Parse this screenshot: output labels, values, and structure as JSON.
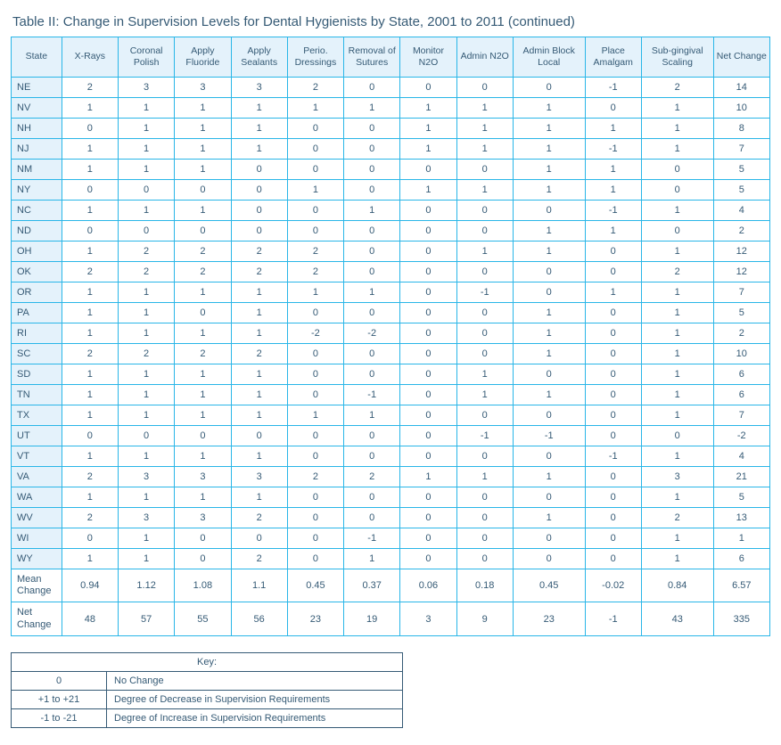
{
  "title": "Table II: Change in Supervision Levels for Dental Hygienists by State, 2001 to 2011 (continued)",
  "columns": [
    "State",
    "X-Rays",
    "Coronal Polish",
    "Apply Fluoride",
    "Apply Sealants",
    "Perio. Dressings",
    "Removal of Sutures",
    "Monitor N2O",
    "Admin N2O",
    "Admin Block Local",
    "Place Amalgam",
    "Sub-gingival Scaling",
    "Net Change"
  ],
  "rows": [
    {
      "state": "NE",
      "v": [
        2,
        3,
        3,
        3,
        2,
        0,
        0,
        0,
        0,
        -1,
        2,
        14
      ]
    },
    {
      "state": "NV",
      "v": [
        1,
        1,
        1,
        1,
        1,
        1,
        1,
        1,
        1,
        0,
        1,
        10
      ]
    },
    {
      "state": "NH",
      "v": [
        0,
        1,
        1,
        1,
        0,
        0,
        1,
        1,
        1,
        1,
        1,
        8
      ]
    },
    {
      "state": "NJ",
      "v": [
        1,
        1,
        1,
        1,
        0,
        0,
        1,
        1,
        1,
        -1,
        1,
        7
      ]
    },
    {
      "state": "NM",
      "v": [
        1,
        1,
        1,
        0,
        0,
        0,
        0,
        0,
        1,
        1,
        0,
        5
      ]
    },
    {
      "state": "NY",
      "v": [
        0,
        0,
        0,
        0,
        1,
        0,
        1,
        1,
        1,
        1,
        0,
        5
      ]
    },
    {
      "state": "NC",
      "v": [
        1,
        1,
        1,
        0,
        0,
        1,
        0,
        0,
        0,
        -1,
        1,
        4
      ]
    },
    {
      "state": "ND",
      "v": [
        0,
        0,
        0,
        0,
        0,
        0,
        0,
        0,
        1,
        1,
        0,
        2
      ]
    },
    {
      "state": "OH",
      "v": [
        1,
        2,
        2,
        2,
        2,
        0,
        0,
        1,
        1,
        0,
        1,
        12
      ]
    },
    {
      "state": "OK",
      "v": [
        2,
        2,
        2,
        2,
        2,
        0,
        0,
        0,
        0,
        0,
        2,
        12
      ]
    },
    {
      "state": "OR",
      "v": [
        1,
        1,
        1,
        1,
        1,
        1,
        0,
        -1,
        0,
        1,
        1,
        7
      ]
    },
    {
      "state": "PA",
      "v": [
        1,
        1,
        0,
        1,
        0,
        0,
        0,
        0,
        1,
        0,
        1,
        5
      ]
    },
    {
      "state": "RI",
      "v": [
        1,
        1,
        1,
        1,
        -2,
        -2,
        0,
        0,
        1,
        0,
        1,
        2
      ]
    },
    {
      "state": "SC",
      "v": [
        2,
        2,
        2,
        2,
        0,
        0,
        0,
        0,
        1,
        0,
        1,
        10
      ]
    },
    {
      "state": "SD",
      "v": [
        1,
        1,
        1,
        1,
        0,
        0,
        0,
        1,
        0,
        0,
        1,
        6
      ]
    },
    {
      "state": "TN",
      "v": [
        1,
        1,
        1,
        1,
        0,
        -1,
        0,
        1,
        1,
        0,
        1,
        6
      ]
    },
    {
      "state": "TX",
      "v": [
        1,
        1,
        1,
        1,
        1,
        1,
        0,
        0,
        0,
        0,
        1,
        7
      ]
    },
    {
      "state": "UT",
      "v": [
        0,
        0,
        0,
        0,
        0,
        0,
        0,
        -1,
        -1,
        0,
        0,
        -2
      ]
    },
    {
      "state": "VT",
      "v": [
        1,
        1,
        1,
        1,
        0,
        0,
        0,
        0,
        0,
        -1,
        1,
        4
      ]
    },
    {
      "state": "VA",
      "v": [
        2,
        3,
        3,
        3,
        2,
        2,
        1,
        1,
        1,
        0,
        3,
        21
      ]
    },
    {
      "state": "WA",
      "v": [
        1,
        1,
        1,
        1,
        0,
        0,
        0,
        0,
        0,
        0,
        1,
        5
      ]
    },
    {
      "state": "WV",
      "v": [
        2,
        3,
        3,
        2,
        0,
        0,
        0,
        0,
        1,
        0,
        2,
        13
      ]
    },
    {
      "state": "WI",
      "v": [
        0,
        1,
        0,
        0,
        0,
        -1,
        0,
        0,
        0,
        0,
        1,
        1
      ]
    },
    {
      "state": "WY",
      "v": [
        1,
        1,
        0,
        2,
        0,
        1,
        0,
        0,
        0,
        0,
        1,
        6
      ]
    }
  ],
  "mean": {
    "label": "Mean Change",
    "v": [
      0.94,
      1.12,
      1.08,
      1.1,
      0.45,
      0.37,
      0.06,
      0.18,
      0.45,
      -0.02,
      0.84,
      6.57
    ]
  },
  "net": {
    "label": "Net Change",
    "v": [
      48,
      57,
      55,
      56,
      23,
      19,
      3,
      9,
      23,
      -1,
      43,
      335
    ]
  },
  "key": {
    "title": "Key:",
    "rows": [
      {
        "val": "0",
        "desc": "No Change"
      },
      {
        "val": "+1 to +21",
        "desc": "Degree of Decrease in Supervision Requirements"
      },
      {
        "val": "-1 to -21",
        "desc": "Degree of Increase in Supervision Requirements"
      }
    ]
  },
  "style": {
    "border_color": "#29b6e8",
    "header_bg": "#e4f2fb",
    "text_color": "#355a75",
    "body_fontsize": 11,
    "title_fontsize": 15
  }
}
